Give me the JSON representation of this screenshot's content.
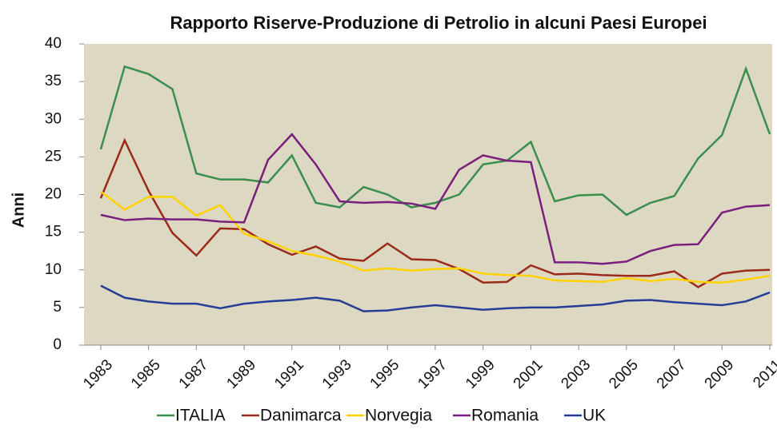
{
  "chart_data": {
    "type": "line",
    "title": "Rapporto Riserve-Produzione di Petrolio in alcuni Paesi Europei",
    "y_label": "Anni",
    "x": [
      1983,
      1984,
      1985,
      1986,
      1987,
      1988,
      1989,
      1990,
      1991,
      1992,
      1993,
      1994,
      1995,
      1996,
      1997,
      1998,
      1999,
      2000,
      2001,
      2002,
      2003,
      2004,
      2005,
      2006,
      2007,
      2008,
      2009,
      2010,
      2011
    ],
    "xlim": [
      1982.3,
      2011.1
    ],
    "xticks": [
      1983,
      1985,
      1987,
      1989,
      1991,
      1993,
      1995,
      1997,
      1999,
      2001,
      2003,
      2005,
      2007,
      2009,
      2011
    ],
    "ylim": [
      0,
      40
    ],
    "yticks": [
      0,
      5,
      10,
      15,
      20,
      25,
      30,
      35,
      40
    ],
    "series": [
      {
        "name": "ITALIA",
        "color": "#3a8f4e",
        "values": [
          26,
          37,
          36,
          34,
          22.8,
          22,
          22,
          21.6,
          25.2,
          18.9,
          18.3,
          21,
          20,
          18.3,
          18.9,
          20,
          24,
          24.5,
          27,
          19.1,
          19.9,
          20,
          17.3,
          18.9,
          19.8,
          24.8,
          27.9,
          36.7,
          28
        ]
      },
      {
        "name": "Danimarca",
        "color": "#9c2a1a",
        "values": [
          19.5,
          27.2,
          20.5,
          14.9,
          11.9,
          15.5,
          15.4,
          13.4,
          12,
          13.1,
          11.5,
          11.2,
          13.5,
          11.4,
          11.3,
          10.1,
          8.3,
          8.4,
          10.6,
          9.4,
          9.5,
          9.3,
          9.2,
          9.2,
          9.8,
          7.7,
          9.5,
          9.9,
          10
        ]
      },
      {
        "name": "Norvegia",
        "color": "#ffd200",
        "values": [
          20.4,
          18,
          19.7,
          19.7,
          17.2,
          18.6,
          14.8,
          13.8,
          12.5,
          11.9,
          11.1,
          9.9,
          10.2,
          9.9,
          10.1,
          10.2,
          9.5,
          9.3,
          9.2,
          8.6,
          8.5,
          8.4,
          8.9,
          8.5,
          8.8,
          8.4,
          8.3,
          8.7,
          9.2
        ]
      },
      {
        "name": "Romania",
        "color": "#7b1f7f",
        "values": [
          17.3,
          16.6,
          16.8,
          16.7,
          16.7,
          16.4,
          16.3,
          24.6,
          28,
          24,
          19.1,
          18.9,
          19,
          18.8,
          18.1,
          23.3,
          25.2,
          24.5,
          24.3,
          11,
          11,
          10.8,
          11.1,
          12.5,
          13.3,
          13.4,
          17.6,
          18.4,
          18.6
        ]
      },
      {
        "name": "UK",
        "color": "#263d96",
        "values": [
          7.9,
          6.3,
          5.8,
          5.5,
          5.5,
          4.9,
          5.5,
          5.8,
          6,
          6.3,
          5.9,
          4.5,
          4.6,
          5,
          5.3,
          5,
          4.7,
          4.9,
          5,
          5,
          5.2,
          5.4,
          5.9,
          6,
          5.7,
          5.5,
          5.3,
          5.8,
          7
        ]
      }
    ]
  }
}
